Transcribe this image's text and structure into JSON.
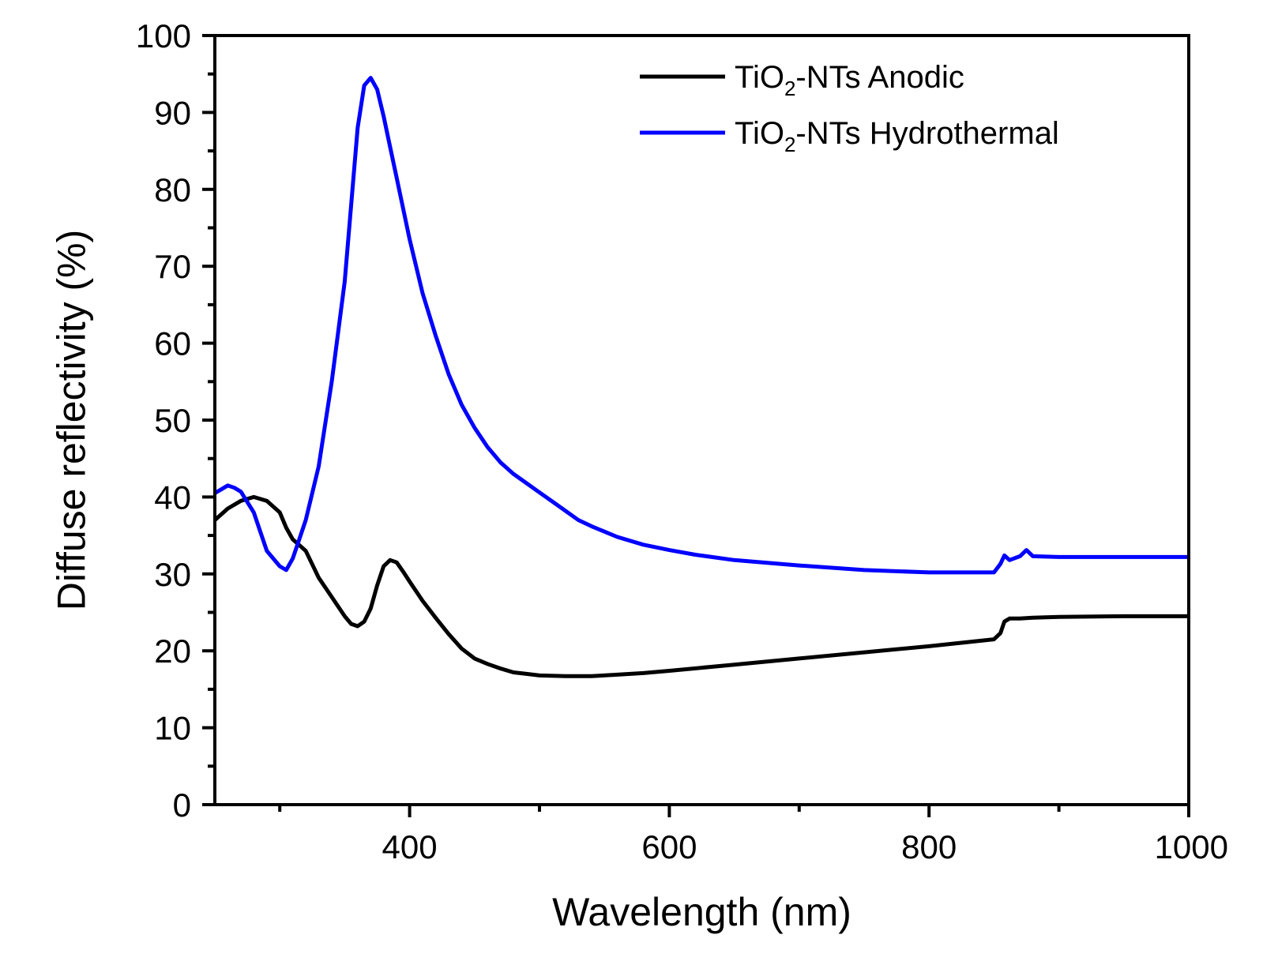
{
  "chart_data": {
    "type": "line",
    "title": "",
    "xlabel": "Wavelength (nm)",
    "ylabel": "Diffuse reflectivity (%)",
    "xlim": [
      250,
      1000
    ],
    "ylim": [
      0,
      100
    ],
    "x_major_ticks": [
      400,
      600,
      800,
      1000
    ],
    "x_tick_labels": [
      "400",
      "600",
      "800",
      "1000"
    ],
    "x_minor_ticks": [
      300,
      500,
      700,
      900
    ],
    "y_major_ticks": [
      0,
      10,
      20,
      30,
      40,
      50,
      60,
      70,
      80,
      90,
      100
    ],
    "y_tick_labels": [
      "0",
      "10",
      "20",
      "30",
      "40",
      "50",
      "60",
      "70",
      "80",
      "90",
      "100"
    ],
    "y_minor_ticks": [
      5,
      15,
      25,
      35,
      45,
      55,
      65,
      75,
      85,
      95
    ],
    "grid": false,
    "legend_position": "top-right",
    "series": [
      {
        "name": "TiO2-NTs Anodic",
        "legend_main": "TiO",
        "legend_sub": "2",
        "legend_rest": "-NTs Anodic",
        "color": "#000000",
        "x": [
          250,
          260,
          270,
          280,
          290,
          300,
          305,
          310,
          320,
          330,
          340,
          350,
          355,
          360,
          365,
          370,
          375,
          380,
          385,
          390,
          395,
          400,
          410,
          420,
          430,
          440,
          450,
          460,
          470,
          480,
          490,
          500,
          520,
          540,
          560,
          580,
          600,
          650,
          700,
          750,
          800,
          850,
          855,
          858,
          862,
          870,
          880,
          900,
          950,
          1000
        ],
        "y": [
          37,
          38.5,
          39.5,
          40,
          39.5,
          38,
          36,
          34.5,
          33,
          29.5,
          27,
          24.5,
          23.5,
          23.2,
          23.8,
          25.5,
          28.5,
          31,
          31.8,
          31.5,
          30.3,
          29,
          26.5,
          24.3,
          22.2,
          20.3,
          19,
          18.3,
          17.7,
          17.2,
          17,
          16.8,
          16.7,
          16.7,
          16.9,
          17.1,
          17.4,
          18.2,
          19,
          19.8,
          20.6,
          21.5,
          22.3,
          23.8,
          24.2,
          24.2,
          24.3,
          24.4,
          24.5,
          24.5
        ]
      },
      {
        "name": "TiO2-NTs Hydrothermal",
        "legend_main": "TiO",
        "legend_sub": "2",
        "legend_rest": "-NTs Hydrothermal",
        "color": "#0000ff",
        "x": [
          250,
          255,
          260,
          265,
          270,
          280,
          285,
          290,
          300,
          305,
          310,
          315,
          320,
          330,
          340,
          350,
          355,
          360,
          365,
          370,
          375,
          380,
          385,
          390,
          400,
          410,
          420,
          430,
          440,
          450,
          460,
          470,
          480,
          490,
          500,
          510,
          520,
          530,
          540,
          560,
          580,
          600,
          620,
          650,
          700,
          750,
          800,
          850,
          855,
          858,
          862,
          870,
          875,
          880,
          900,
          950,
          1000
        ],
        "y": [
          40.5,
          41,
          41.5,
          41.2,
          40.7,
          38,
          35.5,
          33,
          31,
          30.5,
          32,
          34.5,
          37,
          44,
          55,
          68,
          78,
          88,
          93.5,
          94.5,
          93,
          89.5,
          85.5,
          81.5,
          73.5,
          66.5,
          61,
          56,
          52,
          49,
          46.5,
          44.5,
          43,
          41.8,
          40.6,
          39.4,
          38.2,
          37,
          36.2,
          34.8,
          33.8,
          33.1,
          32.5,
          31.8,
          31.1,
          30.5,
          30.2,
          30.2,
          31.3,
          32.4,
          31.8,
          32.3,
          33.1,
          32.3,
          32.2,
          32.2,
          32.2
        ]
      }
    ]
  }
}
